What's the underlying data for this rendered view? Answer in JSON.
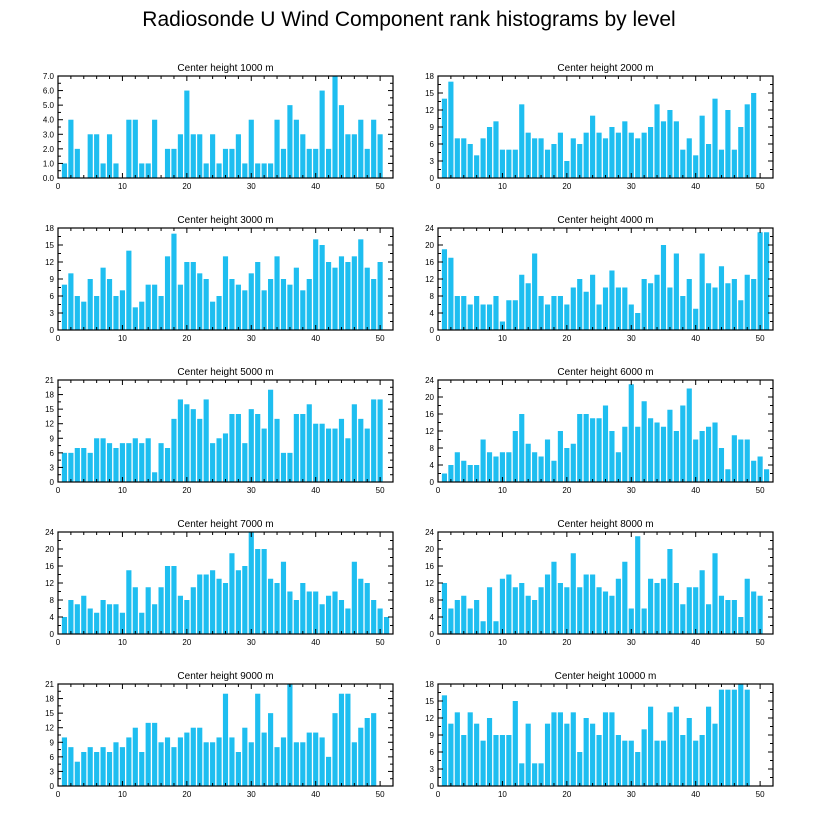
{
  "title": "Radiosonde U Wind Component rank histograms by level",
  "bar_color": "#1ebef0",
  "chart_data": [
    {
      "type": "bar",
      "title": "Center height 1000 m",
      "ylim": [
        0,
        7
      ],
      "yticks": [
        0,
        1,
        2,
        3,
        4,
        5,
        6,
        7
      ],
      "ytick_labels": [
        "0.0",
        "1.0",
        "2.0",
        "3.0",
        "4.0",
        "5.0",
        "6.0",
        "7.0"
      ],
      "xlim": [
        0,
        52
      ],
      "xticks": [
        0,
        10,
        20,
        30,
        40,
        50
      ],
      "xtick_labels": [
        "0",
        "10",
        "20",
        "30",
        "40",
        "50"
      ],
      "x": [
        1,
        2,
        3,
        4,
        5,
        6,
        7,
        8,
        9,
        10,
        11,
        12,
        13,
        14,
        15,
        16,
        17,
        18,
        19,
        20,
        21,
        22,
        23,
        24,
        25,
        26,
        27,
        28,
        29,
        30,
        31,
        32,
        33,
        34,
        35,
        36,
        37,
        38,
        39,
        40,
        41,
        42,
        43,
        44,
        45,
        46,
        47,
        48,
        49,
        50,
        51
      ],
      "values": [
        1,
        4,
        2,
        0,
        3,
        3,
        1,
        3,
        1,
        0,
        4,
        4,
        1,
        1,
        4,
        0,
        2,
        2,
        3,
        6,
        3,
        3,
        1,
        3,
        1,
        2,
        2,
        3,
        1,
        4,
        1,
        1,
        1,
        4,
        2,
        5,
        4,
        3,
        2,
        2,
        6,
        2,
        7,
        5,
        3,
        3,
        4,
        2,
        4,
        3,
        0
      ]
    },
    {
      "type": "bar",
      "title": "Center height 2000 m",
      "ylim": [
        0,
        18
      ],
      "yticks": [
        0,
        3,
        6,
        9,
        12,
        15,
        18
      ],
      "ytick_labels": [
        "0",
        "3",
        "6",
        "9",
        "12",
        "15",
        "18"
      ],
      "xlim": [
        0,
        52
      ],
      "xticks": [
        0,
        10,
        20,
        30,
        40,
        50
      ],
      "xtick_labels": [
        "0",
        "10",
        "20",
        "30",
        "40",
        "50"
      ],
      "x": [
        1,
        2,
        3,
        4,
        5,
        6,
        7,
        8,
        9,
        10,
        11,
        12,
        13,
        14,
        15,
        16,
        17,
        18,
        19,
        20,
        21,
        22,
        23,
        24,
        25,
        26,
        27,
        28,
        29,
        30,
        31,
        32,
        33,
        34,
        35,
        36,
        37,
        38,
        39,
        40,
        41,
        42,
        43,
        44,
        45,
        46,
        47,
        48,
        49,
        50,
        51
      ],
      "values": [
        14,
        17,
        7,
        7,
        6,
        4,
        7,
        9,
        10,
        5,
        5,
        5,
        13,
        8,
        7,
        7,
        5,
        6,
        8,
        3,
        7,
        6,
        8,
        11,
        8,
        7,
        9,
        8,
        10,
        8,
        7,
        8,
        9,
        13,
        10,
        12,
        10,
        5,
        7,
        4,
        11,
        6,
        14,
        5,
        12,
        5,
        9,
        13,
        15,
        0,
        0
      ]
    },
    {
      "type": "bar",
      "title": "Center height 3000 m",
      "ylim": [
        0,
        18
      ],
      "yticks": [
        0,
        3,
        6,
        9,
        12,
        15,
        18
      ],
      "ytick_labels": [
        "0",
        "3",
        "6",
        "9",
        "12",
        "15",
        "18"
      ],
      "xlim": [
        0,
        52
      ],
      "xticks": [
        0,
        10,
        20,
        30,
        40,
        50
      ],
      "xtick_labels": [
        "0",
        "10",
        "20",
        "30",
        "40",
        "50"
      ],
      "x": [
        1,
        2,
        3,
        4,
        5,
        6,
        7,
        8,
        9,
        10,
        11,
        12,
        13,
        14,
        15,
        16,
        17,
        18,
        19,
        20,
        21,
        22,
        23,
        24,
        25,
        26,
        27,
        28,
        29,
        30,
        31,
        32,
        33,
        34,
        35,
        36,
        37,
        38,
        39,
        40,
        41,
        42,
        43,
        44,
        45,
        46,
        47,
        48,
        49,
        50,
        51
      ],
      "values": [
        8,
        10,
        6,
        5,
        9,
        6,
        11,
        9,
        6,
        7,
        14,
        4,
        5,
        8,
        8,
        6,
        13,
        17,
        8,
        12,
        12,
        10,
        9,
        5,
        6,
        13,
        9,
        8,
        7,
        10,
        12,
        7,
        9,
        13,
        9,
        8,
        11,
        7,
        9,
        16,
        15,
        12,
        11,
        13,
        12,
        13,
        16,
        11,
        9,
        12,
        0
      ]
    },
    {
      "type": "bar",
      "title": "Center height 4000 m",
      "ylim": [
        0,
        24
      ],
      "yticks": [
        0,
        4,
        8,
        12,
        16,
        20,
        24
      ],
      "ytick_labels": [
        "0",
        "4",
        "8",
        "12",
        "16",
        "20",
        "24"
      ],
      "xlim": [
        0,
        52
      ],
      "xticks": [
        0,
        10,
        20,
        30,
        40,
        50
      ],
      "xtick_labels": [
        "0",
        "10",
        "20",
        "30",
        "40",
        "50"
      ],
      "x": [
        1,
        2,
        3,
        4,
        5,
        6,
        7,
        8,
        9,
        10,
        11,
        12,
        13,
        14,
        15,
        16,
        17,
        18,
        19,
        20,
        21,
        22,
        23,
        24,
        25,
        26,
        27,
        28,
        29,
        30,
        31,
        32,
        33,
        34,
        35,
        36,
        37,
        38,
        39,
        40,
        41,
        42,
        43,
        44,
        45,
        46,
        47,
        48,
        49,
        50,
        51
      ],
      "values": [
        19,
        17,
        8,
        8,
        6,
        8,
        6,
        6,
        8,
        2,
        7,
        7,
        13,
        11,
        18,
        8,
        6,
        8,
        8,
        6,
        10,
        12,
        9,
        13,
        6,
        10,
        14,
        10,
        10,
        6,
        4,
        12,
        11,
        13,
        20,
        10,
        18,
        8,
        12,
        5,
        18,
        11,
        10,
        15,
        11,
        12,
        7,
        13,
        12,
        23,
        23
      ]
    },
    {
      "type": "bar",
      "title": "Center height 5000 m",
      "ylim": [
        0,
        21
      ],
      "yticks": [
        0,
        3,
        6,
        9,
        12,
        15,
        18,
        21
      ],
      "ytick_labels": [
        "0",
        "3",
        "6",
        "9",
        "12",
        "15",
        "18",
        "21"
      ],
      "xlim": [
        0,
        52
      ],
      "xticks": [
        0,
        10,
        20,
        30,
        40,
        50
      ],
      "xtick_labels": [
        "0",
        "10",
        "20",
        "30",
        "40",
        "50"
      ],
      "x": [
        1,
        2,
        3,
        4,
        5,
        6,
        7,
        8,
        9,
        10,
        11,
        12,
        13,
        14,
        15,
        16,
        17,
        18,
        19,
        20,
        21,
        22,
        23,
        24,
        25,
        26,
        27,
        28,
        29,
        30,
        31,
        32,
        33,
        34,
        35,
        36,
        37,
        38,
        39,
        40,
        41,
        42,
        43,
        44,
        45,
        46,
        47,
        48,
        49,
        50,
        51
      ],
      "values": [
        6,
        6,
        7,
        7,
        6,
        9,
        9,
        8,
        7,
        8,
        8,
        9,
        8,
        9,
        2,
        8,
        7,
        13,
        17,
        16,
        15,
        13,
        17,
        8,
        9,
        10,
        14,
        14,
        8,
        15,
        14,
        11,
        19,
        13,
        6,
        6,
        14,
        14,
        16,
        12,
        12,
        11,
        11,
        13,
        9,
        16,
        13,
        11,
        17,
        17,
        0
      ]
    },
    {
      "type": "bar",
      "title": "Center height 6000 m",
      "ylim": [
        0,
        24
      ],
      "yticks": [
        0,
        4,
        8,
        12,
        16,
        20,
        24
      ],
      "ytick_labels": [
        "0",
        "4",
        "8",
        "12",
        "16",
        "20",
        "24"
      ],
      "xlim": [
        0,
        52
      ],
      "xticks": [
        0,
        10,
        20,
        30,
        40,
        50
      ],
      "xtick_labels": [
        "0",
        "10",
        "20",
        "30",
        "40",
        "50"
      ],
      "x": [
        1,
        2,
        3,
        4,
        5,
        6,
        7,
        8,
        9,
        10,
        11,
        12,
        13,
        14,
        15,
        16,
        17,
        18,
        19,
        20,
        21,
        22,
        23,
        24,
        25,
        26,
        27,
        28,
        29,
        30,
        31,
        32,
        33,
        34,
        35,
        36,
        37,
        38,
        39,
        40,
        41,
        42,
        43,
        44,
        45,
        46,
        47,
        48,
        49,
        50,
        51
      ],
      "values": [
        2,
        4,
        7,
        5,
        4,
        4,
        10,
        7,
        6,
        7,
        7,
        12,
        16,
        9,
        7,
        6,
        10,
        5,
        12,
        8,
        9,
        16,
        16,
        15,
        15,
        18,
        12,
        7,
        13,
        23,
        13,
        19,
        15,
        14,
        13,
        17,
        12,
        18,
        22,
        10,
        12,
        13,
        14,
        8,
        3,
        11,
        10,
        10,
        5,
        6,
        3
      ]
    },
    {
      "type": "bar",
      "title": "Center height 7000 m",
      "ylim": [
        0,
        24
      ],
      "yticks": [
        0,
        4,
        8,
        12,
        16,
        20,
        24
      ],
      "ytick_labels": [
        "0",
        "4",
        "8",
        "12",
        "16",
        "20",
        "24"
      ],
      "xlim": [
        0,
        52
      ],
      "xticks": [
        0,
        10,
        20,
        30,
        40,
        50
      ],
      "xtick_labels": [
        "0",
        "10",
        "20",
        "30",
        "40",
        "50"
      ],
      "x": [
        1,
        2,
        3,
        4,
        5,
        6,
        7,
        8,
        9,
        10,
        11,
        12,
        13,
        14,
        15,
        16,
        17,
        18,
        19,
        20,
        21,
        22,
        23,
        24,
        25,
        26,
        27,
        28,
        29,
        30,
        31,
        32,
        33,
        34,
        35,
        36,
        37,
        38,
        39,
        40,
        41,
        42,
        43,
        44,
        45,
        46,
        47,
        48,
        49,
        50,
        51
      ],
      "values": [
        4,
        8,
        7,
        9,
        6,
        5,
        8,
        7,
        7,
        5,
        15,
        11,
        5,
        11,
        7,
        11,
        16,
        16,
        9,
        8,
        11,
        14,
        14,
        15,
        13,
        12,
        19,
        15,
        16,
        24,
        20,
        20,
        13,
        12,
        17,
        10,
        8,
        12,
        10,
        10,
        7,
        9,
        10,
        8,
        6,
        17,
        13,
        12,
        8,
        6,
        4
      ]
    },
    {
      "type": "bar",
      "title": "Center height 8000 m",
      "ylim": [
        0,
        24
      ],
      "yticks": [
        0,
        4,
        8,
        12,
        16,
        20,
        24
      ],
      "ytick_labels": [
        "0",
        "4",
        "8",
        "12",
        "16",
        "20",
        "24"
      ],
      "xlim": [
        0,
        52
      ],
      "xticks": [
        0,
        10,
        20,
        30,
        40,
        50
      ],
      "xtick_labels": [
        "0",
        "10",
        "20",
        "30",
        "40",
        "50"
      ],
      "x": [
        1,
        2,
        3,
        4,
        5,
        6,
        7,
        8,
        9,
        10,
        11,
        12,
        13,
        14,
        15,
        16,
        17,
        18,
        19,
        20,
        21,
        22,
        23,
        24,
        25,
        26,
        27,
        28,
        29,
        30,
        31,
        32,
        33,
        34,
        35,
        36,
        37,
        38,
        39,
        40,
        41,
        42,
        43,
        44,
        45,
        46,
        47,
        48,
        49,
        50,
        51
      ],
      "values": [
        12,
        6,
        8,
        9,
        6,
        8,
        3,
        11,
        3,
        13,
        14,
        11,
        12,
        9,
        8,
        11,
        14,
        17,
        12,
        11,
        19,
        11,
        14,
        14,
        11,
        10,
        9,
        13,
        17,
        6,
        23,
        6,
        13,
        12,
        13,
        20,
        12,
        7,
        11,
        11,
        15,
        7,
        19,
        9,
        8,
        8,
        4,
        13,
        10,
        9,
        0
      ]
    },
    {
      "type": "bar",
      "title": "Center height 9000 m",
      "ylim": [
        0,
        21
      ],
      "yticks": [
        0,
        3,
        6,
        9,
        12,
        15,
        18,
        21
      ],
      "ytick_labels": [
        "0",
        "3",
        "6",
        "9",
        "12",
        "15",
        "18",
        "21"
      ],
      "xlim": [
        0,
        52
      ],
      "xticks": [
        0,
        10,
        20,
        30,
        40,
        50
      ],
      "xtick_labels": [
        "0",
        "10",
        "20",
        "30",
        "40",
        "50"
      ],
      "x": [
        1,
        2,
        3,
        4,
        5,
        6,
        7,
        8,
        9,
        10,
        11,
        12,
        13,
        14,
        15,
        16,
        17,
        18,
        19,
        20,
        21,
        22,
        23,
        24,
        25,
        26,
        27,
        28,
        29,
        30,
        31,
        32,
        33,
        34,
        35,
        36,
        37,
        38,
        39,
        40,
        41,
        42,
        43,
        44,
        45,
        46,
        47,
        48,
        49,
        50,
        51
      ],
      "values": [
        10,
        8,
        5,
        7,
        8,
        7,
        8,
        7,
        9,
        8,
        10,
        12,
        7,
        13,
        13,
        9,
        10,
        8,
        10,
        11,
        12,
        12,
        9,
        9,
        10,
        19,
        10,
        7,
        12,
        9,
        19,
        11,
        15,
        8,
        10,
        21,
        9,
        9,
        11,
        11,
        10,
        6,
        15,
        19,
        19,
        9,
        12,
        14,
        15,
        0,
        0
      ]
    },
    {
      "type": "bar",
      "title": "Center height 10000 m",
      "ylim": [
        0,
        18
      ],
      "yticks": [
        0,
        3,
        6,
        9,
        12,
        15,
        18
      ],
      "ytick_labels": [
        "0",
        "3",
        "6",
        "9",
        "12",
        "15",
        "18"
      ],
      "xlim": [
        0,
        52
      ],
      "xticks": [
        0,
        10,
        20,
        30,
        40,
        50
      ],
      "xtick_labels": [
        "0",
        "10",
        "20",
        "30",
        "40",
        "50"
      ],
      "x": [
        1,
        2,
        3,
        4,
        5,
        6,
        7,
        8,
        9,
        10,
        11,
        12,
        13,
        14,
        15,
        16,
        17,
        18,
        19,
        20,
        21,
        22,
        23,
        24,
        25,
        26,
        27,
        28,
        29,
        30,
        31,
        32,
        33,
        34,
        35,
        36,
        37,
        38,
        39,
        40,
        41,
        42,
        43,
        44,
        45,
        46,
        47,
        48,
        49,
        50,
        51
      ],
      "values": [
        16,
        11,
        13,
        9,
        13,
        11,
        8,
        12,
        9,
        9,
        9,
        15,
        4,
        11,
        4,
        4,
        11,
        13,
        13,
        11,
        13,
        6,
        12,
        11,
        9,
        13,
        13,
        9,
        8,
        8,
        6,
        10,
        14,
        8,
        8,
        13,
        14,
        9,
        12,
        8,
        9,
        14,
        11,
        17,
        17,
        17,
        18,
        17,
        0,
        0,
        0
      ]
    }
  ]
}
